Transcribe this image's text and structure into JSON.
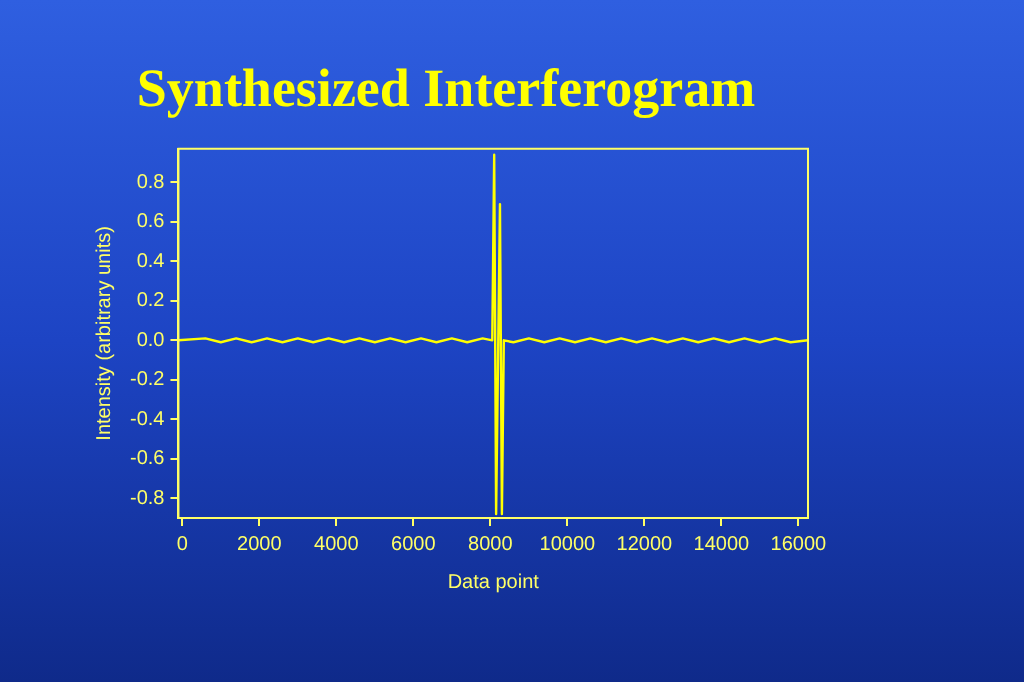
{
  "chart_data": {
    "type": "line",
    "title": "Synthesized Interferogram",
    "xlabel": "Data point",
    "ylabel": "Intensity (arbitrary units)",
    "x": [
      -100,
      600,
      1000,
      1400,
      1800,
      2200,
      2600,
      3000,
      3400,
      3800,
      4200,
      4600,
      5000,
      5400,
      5800,
      6200,
      6600,
      7000,
      7400,
      7800,
      8050,
      8100,
      8150,
      8250,
      8300,
      8350,
      8600,
      9000,
      9400,
      9800,
      10200,
      10600,
      11000,
      11400,
      11800,
      12200,
      12600,
      13000,
      13400,
      13800,
      14200,
      14600,
      15000,
      15400,
      15800,
      16250
    ],
    "series": [
      {
        "color": "#ffff00",
        "values": [
          0,
          0.01,
          -0.01,
          0.01,
          -0.01,
          0.01,
          -0.01,
          0.01,
          -0.01,
          0.01,
          -0.01,
          0.01,
          -0.01,
          0.01,
          -0.01,
          0.01,
          -0.01,
          0.01,
          -0.01,
          0.01,
          0,
          0.94,
          -0.88,
          0.69,
          -0.88,
          0,
          -0.01,
          0.01,
          -0.01,
          0.01,
          -0.01,
          0.01,
          -0.01,
          0.01,
          -0.01,
          0.01,
          -0.01,
          0.01,
          -0.01,
          0.01,
          -0.01,
          0.01,
          -0.01,
          0.01,
          -0.01,
          0
        ]
      }
    ],
    "xlim": [
      -100,
      16250
    ],
    "ylim": [
      -0.9,
      0.97
    ],
    "xticks": [
      0,
      2000,
      4000,
      6000,
      8000,
      10000,
      12000,
      14000,
      16000
    ],
    "yticks": [
      {
        "value": -0.8,
        "label": "-0.8"
      },
      {
        "value": -0.6,
        "label": "-0.6"
      },
      {
        "value": -0.4,
        "label": "-0.4"
      },
      {
        "value": -0.2,
        "label": "-0.2"
      },
      {
        "value": 0,
        "label": "0.0"
      },
      {
        "value": 0.2,
        "label": "0.2"
      },
      {
        "value": 0.4,
        "label": "0.4"
      },
      {
        "value": 0.6,
        "label": "0.6"
      },
      {
        "value": 0.8,
        "label": "0.8"
      }
    ],
    "grid": false,
    "legend": false,
    "marker": "none",
    "line_style": "solid"
  }
}
